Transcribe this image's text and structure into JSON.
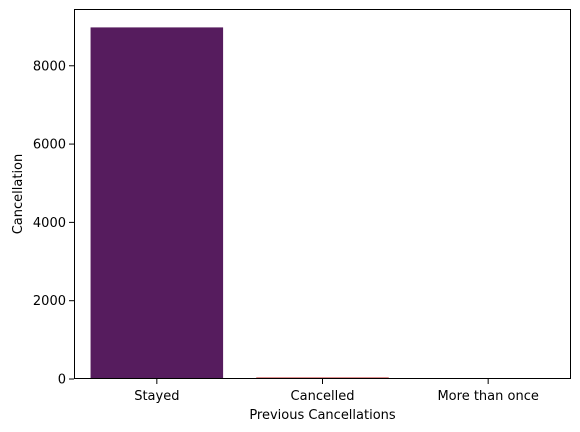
{
  "chart_data": {
    "type": "bar",
    "categories": [
      "Stayed",
      "Cancelled",
      "More than once"
    ],
    "values": [
      8980,
      40,
      3
    ],
    "colors": [
      "#561c5e",
      "#c43a3a",
      "#f0a050"
    ],
    "xlabel": "Previous Cancellations",
    "ylabel": "Cancellation",
    "ylim": [
      0,
      9450
    ],
    "yticks": [
      0,
      2000,
      4000,
      6000,
      8000
    ],
    "grid": false
  }
}
